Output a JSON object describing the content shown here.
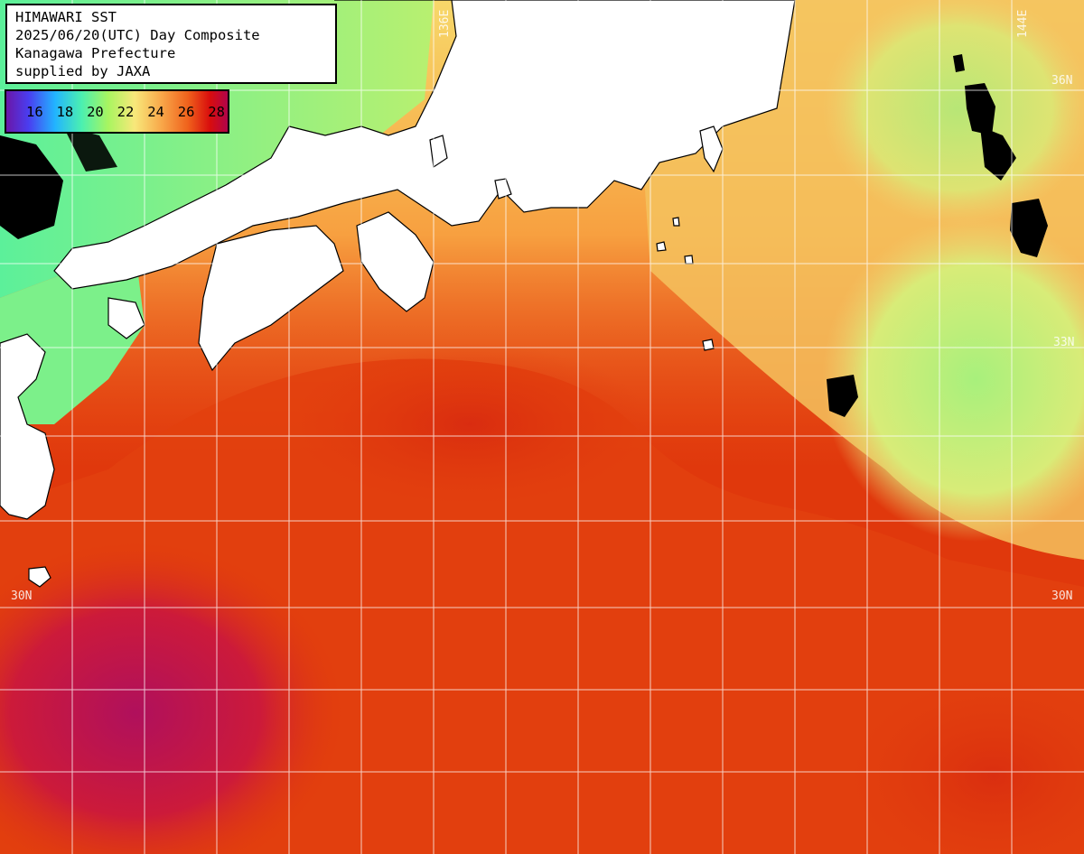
{
  "header": {
    "line1": "HIMAWARI SST",
    "line2": "2025/06/20(UTC) Day Composite",
    "line3": "Kanagawa Prefecture",
    "line4": "supplied by JAXA"
  },
  "legend": {
    "labels": [
      "16",
      "18",
      "20",
      "22",
      "24",
      "26",
      "28"
    ]
  },
  "grid_labels": {
    "lat_36": "36N",
    "lat_33": "33N",
    "lat_30_left": "30N",
    "lat_30_right": "30N",
    "lon_136": "136E",
    "lon_144": "144E"
  },
  "colors": {
    "land": "#ffffff",
    "cloud": "#000000",
    "warm_water": "#e0380c",
    "hot_water": "#c01058",
    "cool_water": "#9af07a",
    "mild_water": "#f8c060",
    "grid": "#ffffff"
  }
}
